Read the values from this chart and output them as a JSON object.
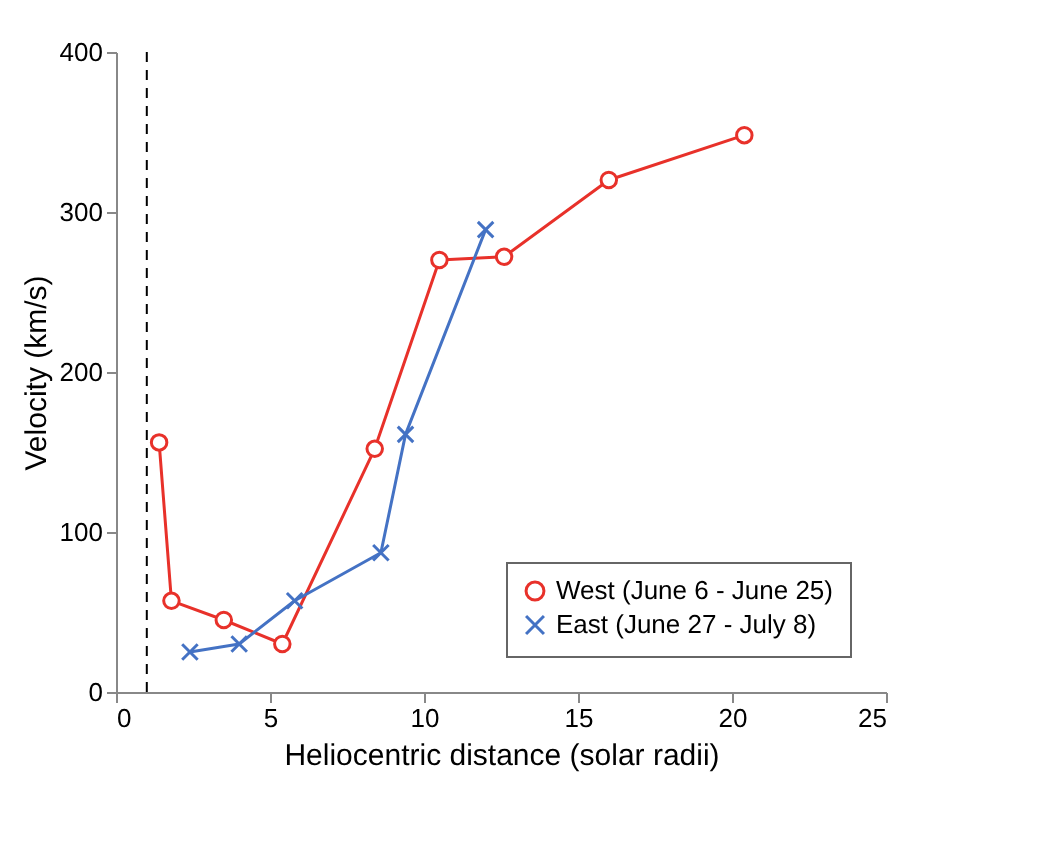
{
  "chart_data": {
    "type": "line",
    "xlabel": "Heliocentric distance (solar radii)",
    "ylabel": "Velocity (km/s)",
    "xlim": [
      0,
      25
    ],
    "xticks": [
      0,
      5,
      10,
      15,
      20,
      25
    ],
    "ylim": [
      0,
      400
    ],
    "yticks": [
      0,
      100,
      200,
      300,
      400
    ],
    "grid": false,
    "legend": "bottom right",
    "series": [
      {
        "name": "West (June 6 - June 25)",
        "color": "#e8312a",
        "marker": "circle",
        "x": [
          1.4,
          1.8,
          3.5,
          5.4,
          8.4,
          10.5,
          12.6,
          16.0,
          20.4
        ],
        "values": [
          156,
          57,
          45,
          30,
          152,
          270,
          272,
          320,
          348
        ]
      },
      {
        "name": "East (June 27 - July 8)",
        "color": "#4472c4",
        "marker": "cross",
        "x": [
          2.4,
          4.0,
          5.8,
          8.6,
          9.4,
          12.0
        ],
        "values": [
          25,
          30,
          57,
          87,
          161,
          289
        ]
      }
    ],
    "ref_lines": [
      {
        "axis": "x",
        "value": 1,
        "color": "#000000",
        "line_style": "dashed"
      }
    ]
  }
}
